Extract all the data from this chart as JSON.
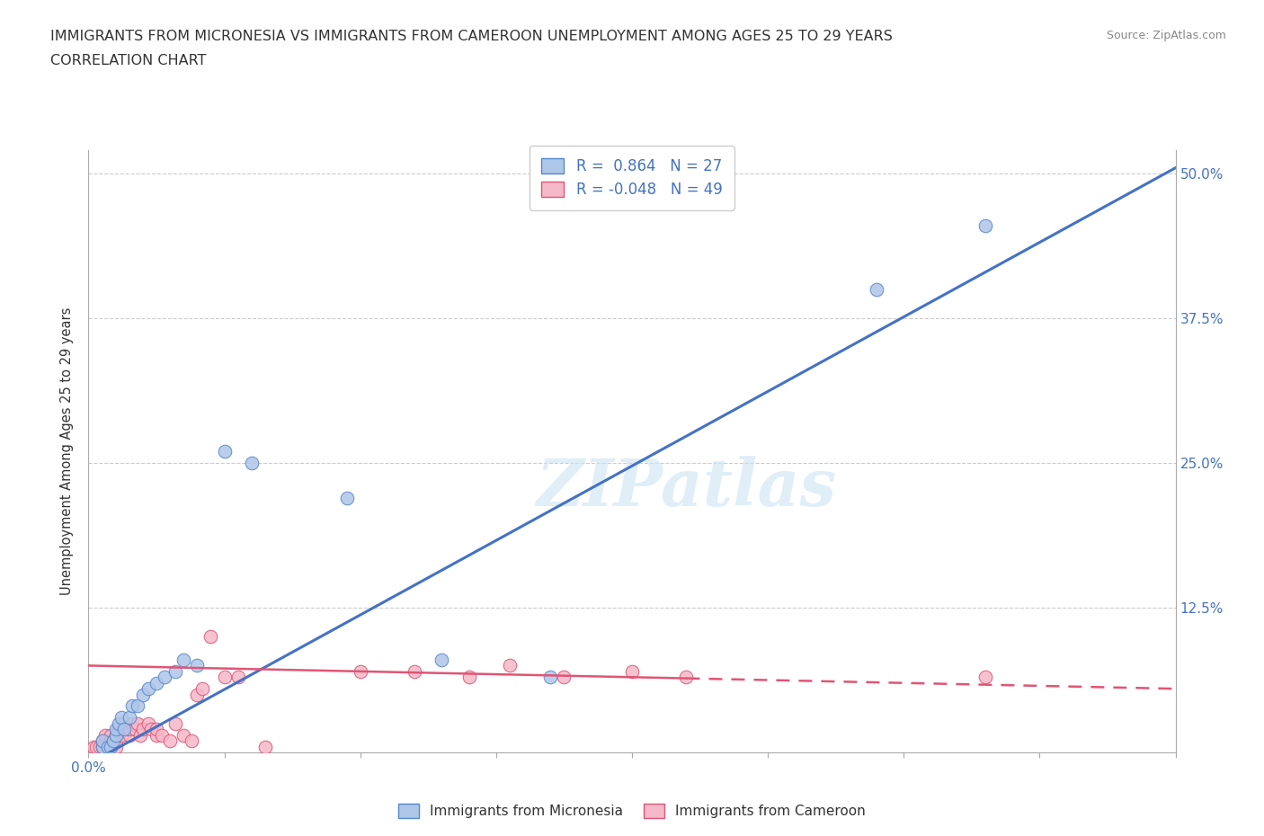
{
  "title_line1": "IMMIGRANTS FROM MICRONESIA VS IMMIGRANTS FROM CAMEROON UNEMPLOYMENT AMONG AGES 25 TO 29 YEARS",
  "title_line2": "CORRELATION CHART",
  "source": "Source: ZipAtlas.com",
  "ylabel": "Unemployment Among Ages 25 to 29 years",
  "xlim": [
    0.0,
    0.4
  ],
  "ylim": [
    0.0,
    0.52
  ],
  "xtick_positions": [
    0.0,
    0.05,
    0.1,
    0.15,
    0.2,
    0.25,
    0.3,
    0.35,
    0.4
  ],
  "xtick_labels_show": {
    "0.0": "0.0%"
  },
  "ytick_positions": [
    0.125,
    0.25,
    0.375,
    0.5
  ],
  "ytick_labels": [
    "12.5%",
    "25.0%",
    "37.5%",
    "50.0%"
  ],
  "micronesia_color": "#aec6e8",
  "cameroon_color": "#f5b8c8",
  "micronesia_edge": "#5588cc",
  "cameroon_edge": "#e05575",
  "trend_blue": "#4472c4",
  "trend_pink": "#e05575",
  "R_micronesia": 0.864,
  "N_micronesia": 27,
  "R_cameroon": -0.048,
  "N_cameroon": 49,
  "watermark": "ZIPatlas",
  "legend_label_blue": "Immigrants from Micronesia",
  "legend_label_pink": "Immigrants from Cameroon",
  "micronesia_x": [
    0.005,
    0.005,
    0.007,
    0.008,
    0.009,
    0.01,
    0.01,
    0.011,
    0.012,
    0.013,
    0.015,
    0.016,
    0.018,
    0.02,
    0.022,
    0.025,
    0.028,
    0.032,
    0.035,
    0.04,
    0.05,
    0.06,
    0.095,
    0.13,
    0.17,
    0.29,
    0.33
  ],
  "micronesia_y": [
    0.005,
    0.01,
    0.005,
    0.005,
    0.01,
    0.015,
    0.02,
    0.025,
    0.03,
    0.02,
    0.03,
    0.04,
    0.04,
    0.05,
    0.055,
    0.06,
    0.065,
    0.07,
    0.08,
    0.075,
    0.26,
    0.25,
    0.22,
    0.08,
    0.065,
    0.4,
    0.455
  ],
  "cameroon_x": [
    0.002,
    0.003,
    0.004,
    0.005,
    0.005,
    0.006,
    0.006,
    0.007,
    0.008,
    0.008,
    0.009,
    0.01,
    0.01,
    0.01,
    0.011,
    0.012,
    0.012,
    0.013,
    0.014,
    0.015,
    0.015,
    0.016,
    0.017,
    0.018,
    0.019,
    0.02,
    0.022,
    0.023,
    0.025,
    0.025,
    0.027,
    0.03,
    0.032,
    0.035,
    0.038,
    0.04,
    0.042,
    0.045,
    0.05,
    0.055,
    0.065,
    0.1,
    0.12,
    0.14,
    0.155,
    0.175,
    0.2,
    0.22,
    0.33
  ],
  "cameroon_y": [
    0.005,
    0.005,
    0.005,
    0.005,
    0.01,
    0.01,
    0.015,
    0.005,
    0.01,
    0.015,
    0.01,
    0.005,
    0.01,
    0.015,
    0.02,
    0.015,
    0.02,
    0.025,
    0.02,
    0.015,
    0.02,
    0.025,
    0.02,
    0.025,
    0.015,
    0.02,
    0.025,
    0.02,
    0.015,
    0.02,
    0.015,
    0.01,
    0.025,
    0.015,
    0.01,
    0.05,
    0.055,
    0.1,
    0.065,
    0.065,
    0.005,
    0.07,
    0.07,
    0.065,
    0.075,
    0.065,
    0.07,
    0.065,
    0.065
  ],
  "trend_blue_x0": 0.0,
  "trend_blue_y0": -0.01,
  "trend_blue_x1": 0.4,
  "trend_blue_y1": 0.505,
  "trend_pink_x0": 0.0,
  "trend_pink_y0": 0.075,
  "trend_pink_x1": 0.4,
  "trend_pink_y1": 0.055,
  "trend_pink_solid_end": 0.22,
  "grid_color": "#cccccc",
  "spine_color": "#aaaaaa"
}
